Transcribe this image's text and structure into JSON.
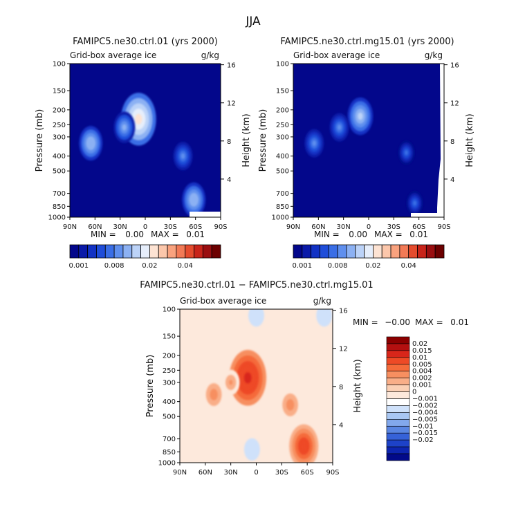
{
  "page_title": "JJA",
  "chart_data": [
    {
      "type": "heatmap",
      "title": "FAMIPC5.ne30.ctrl.01 (yrs 2000)",
      "subtitle_left": "Grid-box average ice",
      "subtitle_right": "g/kg",
      "xlabel": "",
      "ylabel": "Pressure (mb)",
      "ylabel_right": "Height (km)",
      "x_ticks": [
        "90N",
        "60N",
        "30N",
        "0",
        "30S",
        "60S",
        "90S"
      ],
      "y_ticks": [
        "100",
        "150",
        "200",
        "250",
        "300",
        "400",
        "500",
        "700",
        "850",
        "1000"
      ],
      "y_ticks_right": [
        "16",
        "12",
        "8",
        "4"
      ],
      "stats": {
        "min_label": "MIN =",
        "min": "0.00",
        "max_label": "MAX =",
        "max": "0.01"
      },
      "colorbar": {
        "orientation": "horizontal",
        "colors": [
          "#03078b",
          "#0a1aa8",
          "#1232c4",
          "#1f4dd9",
          "#3a6ee6",
          "#5f8fee",
          "#8cb1f3",
          "#bcd3f8",
          "#e6eefb",
          "#fde3d3",
          "#fcc7ab",
          "#f9a27e",
          "#f27a56",
          "#e54c2e",
          "#c8241a",
          "#9a0e10",
          "#6c0000"
        ],
        "labels": [
          "0.001",
          "0.008",
          "0.02",
          "0.04"
        ]
      },
      "blobs": [
        {
          "lat": 8,
          "p": 230,
          "value": 0.011
        },
        {
          "lat": 25,
          "p": 260,
          "value": 0.004
        },
        {
          "lat": 65,
          "p": 330,
          "value": 0.005
        },
        {
          "lat": -45,
          "p": 400,
          "value": 0.003
        },
        {
          "lat": -58,
          "p": 770,
          "value": 0.005
        }
      ]
    },
    {
      "type": "heatmap",
      "title": "FAMIPC5.ne30.ctrl.mg15.01 (yrs 2000)",
      "subtitle_left": "Grid-box average ice",
      "subtitle_right": "g/kg",
      "xlabel": "",
      "ylabel": "Pressure (mb)",
      "ylabel_right": "Height (km)",
      "x_ticks": [
        "90N",
        "60N",
        "30N",
        "0",
        "30S",
        "60S",
        "90S"
      ],
      "y_ticks": [
        "100",
        "150",
        "200",
        "250",
        "300",
        "400",
        "500",
        "700",
        "850",
        "1000"
      ],
      "y_ticks_right": [
        "16",
        "12",
        "8",
        "4"
      ],
      "stats": {
        "min_label": "MIN =",
        "min": "0.00",
        "max_label": "MAX =",
        "max": "0.01"
      },
      "colorbar": {
        "orientation": "horizontal",
        "colors": [
          "#03078b",
          "#0a1aa8",
          "#1232c4",
          "#1f4dd9",
          "#3a6ee6",
          "#5f8fee",
          "#8cb1f3",
          "#bcd3f8",
          "#e6eefb",
          "#fde3d3",
          "#fcc7ab",
          "#f9a27e",
          "#f27a56",
          "#e54c2e",
          "#c8241a",
          "#9a0e10",
          "#6c0000"
        ],
        "labels": [
          "0.001",
          "0.008",
          "0.02",
          "0.04"
        ]
      },
      "blobs": [
        {
          "lat": 10,
          "p": 220,
          "value": 0.006
        },
        {
          "lat": 35,
          "p": 260,
          "value": 0.003
        },
        {
          "lat": 65,
          "p": 330,
          "value": 0.003
        },
        {
          "lat": -45,
          "p": 380,
          "value": 0.002
        },
        {
          "lat": -55,
          "p": 810,
          "value": 0.002
        }
      ]
    },
    {
      "type": "heatmap",
      "title": "FAMIPC5.ne30.ctrl.01 − FAMIPC5.ne30.ctrl.mg15.01",
      "subtitle_left": "Grid-box average ice",
      "subtitle_right": "g/kg",
      "xlabel": "",
      "ylabel": "Pressure (mb)",
      "ylabel_right": "Height (km)",
      "x_ticks": [
        "90N",
        "60N",
        "30N",
        "0",
        "30S",
        "60S",
        "90S"
      ],
      "y_ticks": [
        "100",
        "150",
        "200",
        "250",
        "300",
        "400",
        "500",
        "700",
        "850",
        "1000"
      ],
      "y_ticks_right": [
        "16",
        "12",
        "8",
        "4"
      ],
      "stats": {
        "min_label": "MIN =",
        "min": "−0.00",
        "max_label": "MAX =",
        "max": "0.01"
      },
      "colorbar": {
        "orientation": "vertical",
        "colors": [
          "#8b0000",
          "#b41010",
          "#d8261a",
          "#ee4a26",
          "#f56b3a",
          "#f78f60",
          "#f9ae88",
          "#fbd0b5",
          "#fde9dc",
          "#ffffff",
          "#cfe1fa",
          "#a9c7f3",
          "#82a8ec",
          "#5a86e2",
          "#3662d8",
          "#1d42c8",
          "#0d25b0",
          "#020a8a"
        ],
        "labels": [
          "0.02",
          "0.015",
          "0.01",
          "0.005",
          "0.004",
          "0.002",
          "0.001",
          "0",
          "−0.001",
          "−0.002",
          "−0.004",
          "−0.005",
          "−0.01",
          "−0.015",
          "−0.02"
        ]
      },
      "blobs": [
        {
          "lat": 10,
          "p": 280,
          "value": 0.012
        },
        {
          "lat": 50,
          "p": 360,
          "value": 0.003
        },
        {
          "lat": 30,
          "p": 300,
          "value": 0.002
        },
        {
          "lat": -40,
          "p": 420,
          "value": 0.003
        },
        {
          "lat": -56,
          "p": 780,
          "value": 0.008
        },
        {
          "lat": -80,
          "p": 110,
          "value": -0.001
        },
        {
          "lat": 0,
          "p": 110,
          "value": -0.001
        },
        {
          "lat": 5,
          "p": 820,
          "value": -0.001
        }
      ]
    }
  ]
}
